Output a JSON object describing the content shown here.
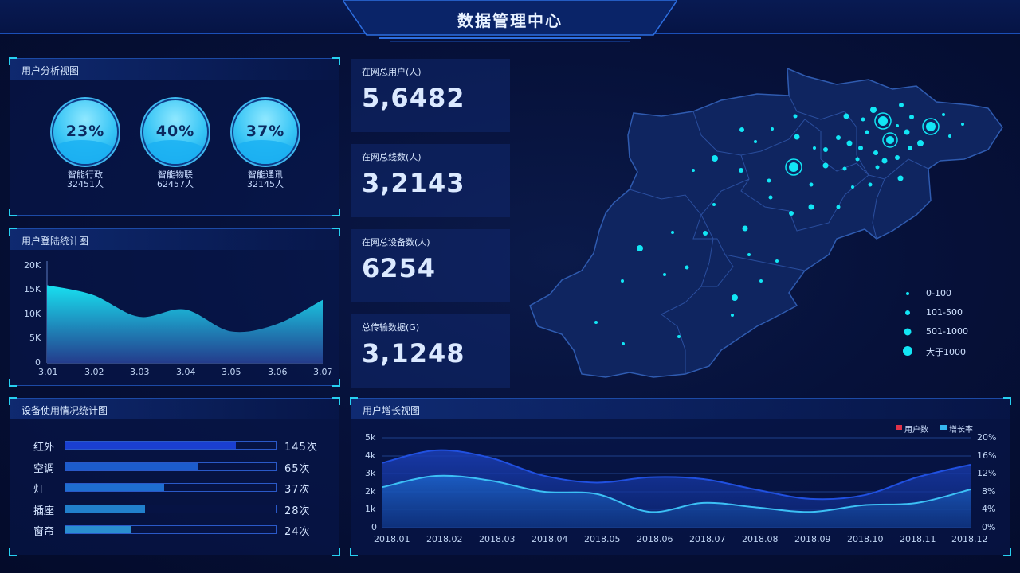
{
  "header": {
    "title": "数据管理中心"
  },
  "user_analysis": {
    "title": "用户分析视图",
    "gauges": [
      {
        "percent": "23%",
        "name": "智能行政",
        "count": "32451人"
      },
      {
        "percent": "40%",
        "name": "智能物联",
        "count": "62457人"
      },
      {
        "percent": "37%",
        "name": "智能通讯",
        "count": "32145人"
      }
    ]
  },
  "login_stats": {
    "title": "用户登陆统计图",
    "chart_data": {
      "type": "area",
      "x": [
        "3.01",
        "3.02",
        "3.03",
        "3.04",
        "3.05",
        "3.06",
        "3.07"
      ],
      "values": [
        16000,
        14000,
        9500,
        11000,
        6500,
        8000,
        13000
      ],
      "y_ticks": [
        "20K",
        "15K",
        "10K",
        "5K",
        "0"
      ],
      "ylim": [
        0,
        20000
      ]
    }
  },
  "stats": [
    {
      "label": "在网总用户(人)",
      "value": "5,6482"
    },
    {
      "label": "在网总线数(人)",
      "value": "3,2143"
    },
    {
      "label": "在网总设备数(人)",
      "value": "6254"
    },
    {
      "label": "总传输数据(G)",
      "value": "3,1248"
    }
  ],
  "map": {
    "legend": [
      "0-100",
      "101-500",
      "501-1000",
      "大于1000"
    ]
  },
  "device_usage": {
    "title": "设备使用情况统计图",
    "chart_data": {
      "type": "bar",
      "categories": [
        "红外",
        "空调",
        "灯",
        "插座",
        "窗帘"
      ],
      "values": [
        145,
        65,
        37,
        28,
        24
      ],
      "value_labels": [
        "145次",
        "65次",
        "37次",
        "28次",
        "24次"
      ],
      "fill_fraction": [
        0.81,
        0.63,
        0.47,
        0.38,
        0.31
      ],
      "colors": [
        "#1a3fd0",
        "#1c5ccc",
        "#1e6ed0",
        "#2180cc",
        "#2a8ed0"
      ]
    }
  },
  "user_growth": {
    "title": "用户增长视图",
    "legend": [
      {
        "label": "用户数",
        "color": "#e0334a"
      },
      {
        "label": "增长率",
        "color": "#35b6f0"
      }
    ],
    "chart_data": {
      "type": "area",
      "x": [
        "2018.01",
        "2018.02",
        "2018.03",
        "2018.04",
        "2018.05",
        "2018.06",
        "2018.07",
        "2018.08",
        "2018.09",
        "2018.10",
        "2018.11",
        "2018.12"
      ],
      "series": [
        {
          "name": "用户数",
          "axis": "left",
          "values": [
            3600,
            4300,
            3900,
            2900,
            2500,
            2800,
            2700,
            2100,
            1600,
            1800,
            2800,
            3500
          ]
        },
        {
          "name": "增长率",
          "axis": "right",
          "values": [
            9,
            11.5,
            10.5,
            8,
            7.5,
            3.5,
            5.5,
            4.5,
            3.5,
            5,
            5.5,
            8.5
          ]
        }
      ],
      "y_left_ticks": [
        "5k",
        "4k",
        "3k",
        "2k",
        "1k",
        "0"
      ],
      "y_right_ticks": [
        "20%",
        "16%",
        "12%",
        "8%",
        "4%",
        "0%"
      ],
      "ylim_left": [
        0,
        5000
      ],
      "ylim_right": [
        0,
        20
      ]
    }
  }
}
